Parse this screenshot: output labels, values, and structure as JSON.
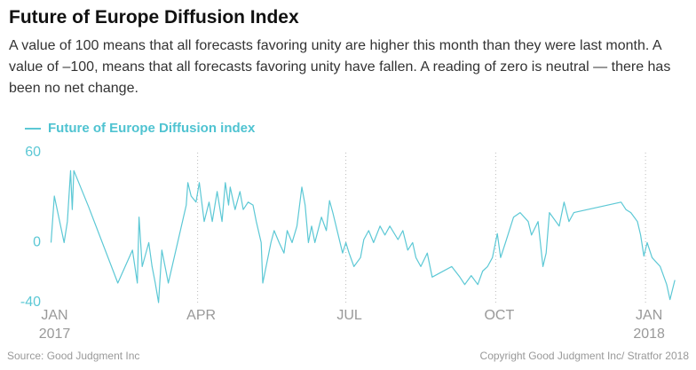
{
  "chart_data": {
    "type": "line",
    "title": "Future of Europe Diffusion Index",
    "subtitle": "A value of 100 means that all forecasts favoring unity are higher this month than they were last month. A value of –100, means that all forecasts favoring unity have fallen. A reading of zero is neutral — there has been no net change.",
    "x": [
      0,
      2,
      8,
      10,
      12,
      13,
      14,
      23,
      41,
      50,
      53,
      54,
      56,
      60,
      62,
      64,
      66,
      68,
      72,
      83,
      84,
      86,
      89,
      91,
      94,
      97,
      99,
      102,
      105,
      107,
      109,
      110,
      113,
      116,
      118,
      121,
      124,
      126,
      129,
      130,
      135,
      137,
      140,
      143,
      145,
      148,
      151,
      154,
      156,
      158,
      160,
      162,
      166,
      169,
      171,
      173,
      179,
      181,
      183,
      186,
      190,
      192,
      195,
      198,
      202,
      205,
      208,
      213,
      216,
      219,
      222,
      224,
      227,
      231,
      234,
      246,
      251,
      254,
      258,
      262,
      265,
      268,
      271,
      274,
      276,
      279,
      284,
      288,
      293,
      295,
      299,
      302,
      304,
      306,
      312,
      315,
      318,
      321,
      350,
      353,
      356,
      360,
      362,
      364,
      366,
      369,
      374,
      378,
      380,
      383
    ],
    "series": [
      {
        "name": "Future of Europe Diffusion index",
        "color": "#5cc8d5",
        "values": [
          0,
          31,
          0,
          14,
          48,
          22,
          48,
          24,
          -27,
          -5,
          -27,
          17,
          -16,
          0,
          -16,
          -27,
          -40,
          -5,
          -27,
          25,
          40,
          31,
          27,
          40,
          14,
          27,
          14,
          34,
          14,
          40,
          25,
          37,
          22,
          34,
          22,
          27,
          25,
          14,
          0,
          -27,
          0,
          8,
          0,
          -7,
          8,
          0,
          11,
          37,
          25,
          0,
          11,
          0,
          17,
          8,
          28,
          20,
          -7,
          0,
          -7,
          -16,
          -10,
          2,
          8,
          0,
          11,
          5,
          11,
          2,
          8,
          -5,
          0,
          -10,
          -16,
          -7,
          -23,
          -16,
          -23,
          -28,
          -22,
          -28,
          -19,
          -16,
          -10,
          6,
          -10,
          0,
          17,
          20,
          14,
          5,
          14,
          -16,
          -7,
          20,
          11,
          27,
          14,
          20,
          27,
          22,
          20,
          14,
          5,
          -9,
          0,
          -10,
          -16,
          -28,
          -38,
          -25
        ]
      }
    ],
    "xlim": [
      -3,
      384
    ],
    "xticks": [
      {
        "value": 0,
        "label": "JAN"
      },
      {
        "value": 90,
        "label": "APR"
      },
      {
        "value": 181,
        "label": "JUL"
      },
      {
        "value": 273,
        "label": "OCT"
      },
      {
        "value": 365,
        "label": "JAN"
      }
    ],
    "xtick_years": [
      {
        "value": 0,
        "label": "2017"
      },
      {
        "value": 365,
        "label": "2018"
      }
    ],
    "ylim": [
      -40,
      60
    ],
    "yticks": [
      -40,
      0,
      60
    ],
    "xgrid": true,
    "source": "Source: Good Judgment Inc",
    "credit": "Copyright Good Judgment Inc/ Stratfor 2018"
  }
}
